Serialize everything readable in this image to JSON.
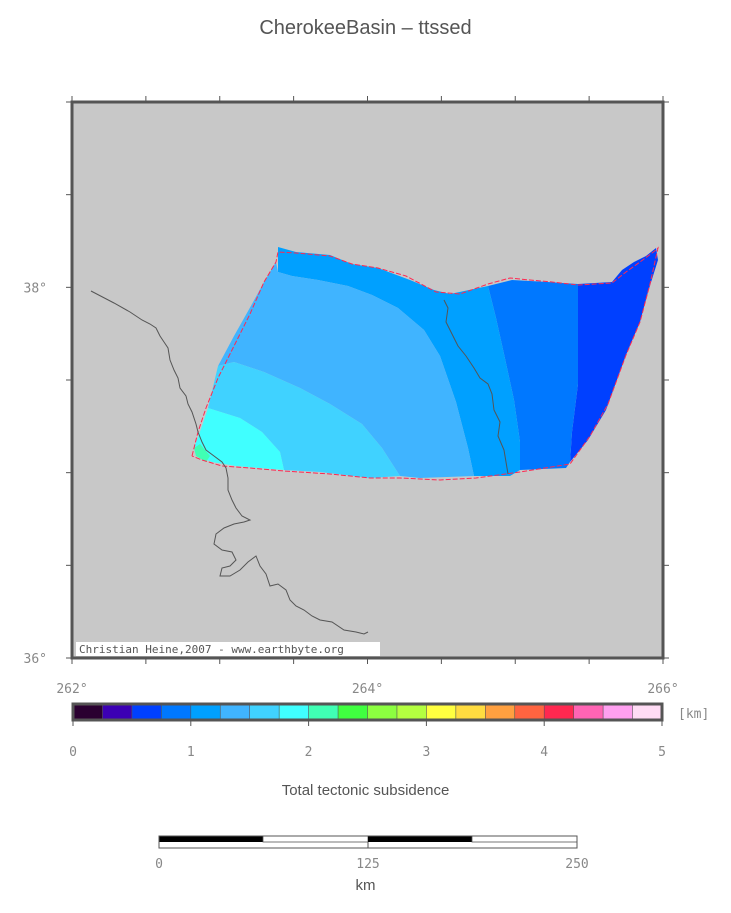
{
  "map": {
    "title": "CherokeeBasin – ttssed",
    "credit": "Christian Heine,2007 - www.earthbyte.org",
    "background_color": "#c8c8c8",
    "x_ticks": [
      {
        "label": "262°",
        "lon": 262
      },
      {
        "label": "264°",
        "lon": 264
      },
      {
        "label": "266°",
        "lon": 266
      }
    ],
    "y_ticks": [
      {
        "label": "38°",
        "lat": 38
      },
      {
        "label": "36°",
        "lat": 36
      }
    ],
    "extent": {
      "lon": [
        262,
        266
      ],
      "lat": [
        36,
        39
      ]
    }
  },
  "colorbar": {
    "unit": "[km]",
    "caption": "Total tectonic subsidence",
    "range": [
      0,
      5
    ],
    "tick_labels": [
      "0",
      "1",
      "2",
      "3",
      "4",
      "5"
    ],
    "colors": [
      "#2a0030",
      "#3c00b4",
      "#0040ff",
      "#0078ff",
      "#00a0ff",
      "#40b4ff",
      "#40d2ff",
      "#40ffff",
      "#40ffb4",
      "#40ff40",
      "#8cff40",
      "#b4ff40",
      "#ffff40",
      "#ffdc40",
      "#ffa040",
      "#ff6440",
      "#ff2850",
      "#ff64b4",
      "#ffa0f0",
      "#ffdcf5"
    ]
  },
  "basin_colors": {
    "zone_0_75_1": "#0040ff",
    "zone_1_1_25": "#0078ff",
    "zone_1_25_1_5": "#00a0ff",
    "zone_1_5_1_75": "#40b4ff",
    "zone_1_75_2": "#40d2ff",
    "zone_2_2_25": "#40ffff",
    "outline": "#ff2850",
    "river": "#555555"
  },
  "scalebar": {
    "labels": [
      "0",
      "125",
      "250"
    ],
    "unit": "km"
  }
}
